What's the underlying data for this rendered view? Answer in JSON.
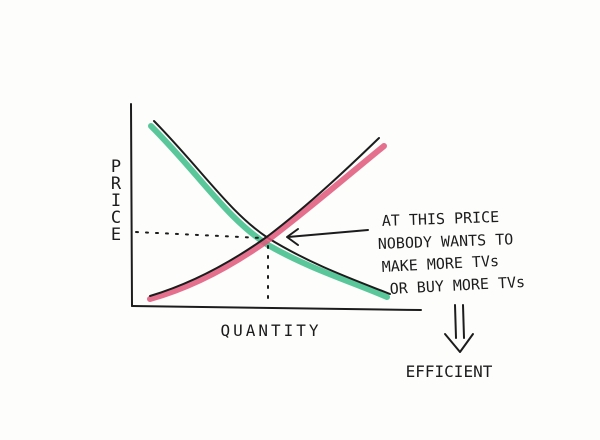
{
  "axes": {
    "x_label": "QUANTITY",
    "y_label": "PRICE"
  },
  "annotation": {
    "lines": [
      "AT THIS PRICE",
      "NOBODY WANTS TO",
      "MAKE MORE TVs",
      "OR BUY MORE TVs"
    ]
  },
  "conclusion": {
    "label": "EFFICIENT"
  },
  "colors": {
    "ink": "#1c1c1c",
    "demand_highlight": "#3dbd8a",
    "supply_highlight": "#e0577a"
  }
}
